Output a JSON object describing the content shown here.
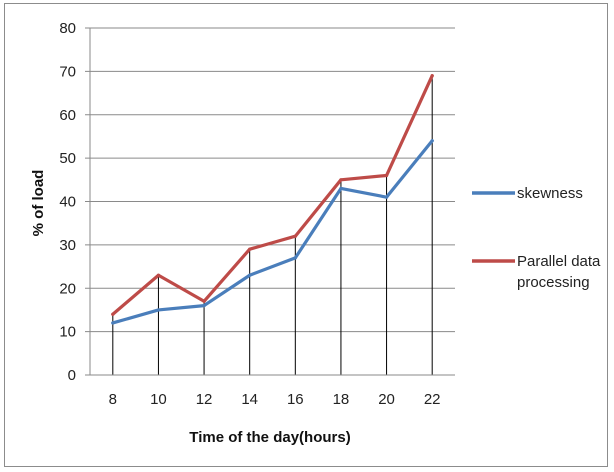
{
  "chart_data": {
    "type": "line",
    "title": "",
    "xlabel": "Time of the day(hours)",
    "ylabel": "% of load",
    "x": [
      "8",
      "10",
      "12",
      "14",
      "16",
      "18",
      "20",
      "22"
    ],
    "ylim": [
      0,
      80
    ],
    "yticks": [
      0,
      10,
      20,
      30,
      40,
      50,
      60,
      70,
      80
    ],
    "grid": "horizontal",
    "legend_position": "right",
    "series": [
      {
        "name": "skewness",
        "color": "#4a7ebb",
        "values": [
          12,
          15,
          16,
          23,
          27,
          43,
          41,
          54
        ]
      },
      {
        "name": "Parallel data processing",
        "legend_lines": [
          "Parallel data",
          "processing"
        ],
        "color": "#be4b48",
        "values": [
          14,
          23,
          17,
          29,
          32,
          45,
          46,
          69
        ]
      }
    ]
  }
}
